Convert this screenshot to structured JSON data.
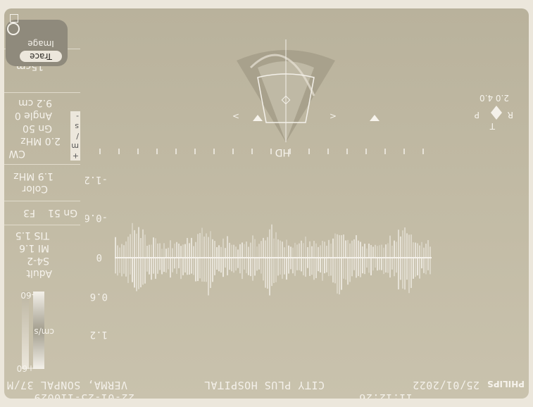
{
  "header": {
    "patient": "VERMA, SONPAL 37/M",
    "patient_id": "22-01-25-110029",
    "hospital": "CITY PLUS HOSPITAL",
    "date": "25/01/2022",
    "time": "11:12:26",
    "brand": "PHILIPS"
  },
  "colorbar": {
    "top_label": "+60",
    "unit": "cm/s",
    "bottom_label": "-60"
  },
  "side_panel": {
    "preset": "Adult",
    "probe": "S4-2",
    "mi": "MI 1.6",
    "tis": "TIS 1.5",
    "f_mode": "F3",
    "gain_2d": "Gn 51",
    "color_label": "Color",
    "color_freq": "1.9 MHz",
    "cw_label": "CW",
    "cw_freq": "2.0 MHz",
    "cw_gain": "Gn 50",
    "angle": "Angle 0",
    "depth": "9.2 cm",
    "sweep": "15cm",
    "mini_scale": [
      "+",
      "m",
      "/",
      "s",
      "-"
    ]
  },
  "image_trace": {
    "image_label": "Image",
    "trace_label": "Trace"
  },
  "spectral": {
    "ticks": [
      "1.2",
      "0.6",
      "0",
      "-0.6",
      "-1.2"
    ],
    "color_trace": "#f4f1ea"
  },
  "sector": {
    "hd_label": "HD",
    "rt_label_r": "R",
    "rt_label_t": "T",
    "rt_label_p": "P",
    "rt_value": "2.0 4.0"
  },
  "colors": {
    "plate": "#c2bba5",
    "text": "#f4f1ea"
  }
}
